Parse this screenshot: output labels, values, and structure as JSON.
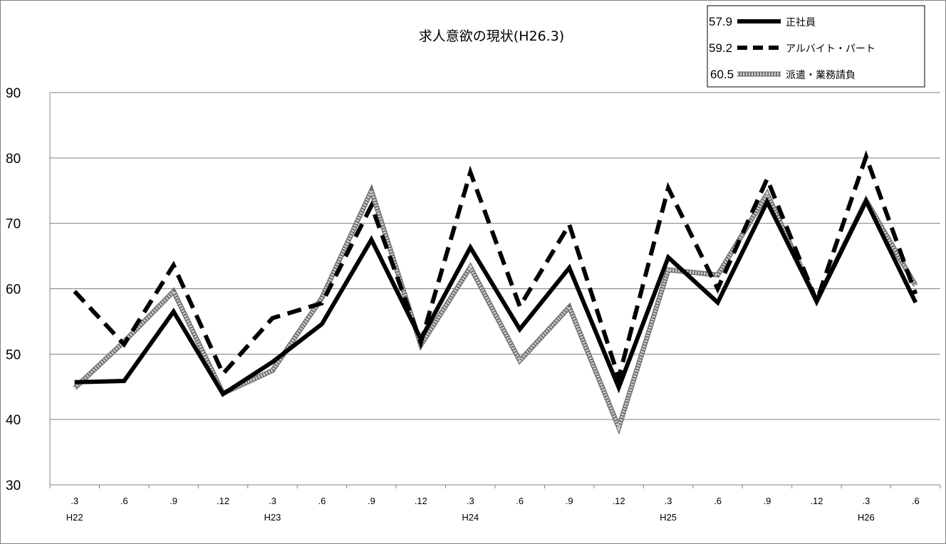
{
  "chart_data": {
    "type": "line",
    "title": "求人意欲の現状(H26.3)",
    "xlabel": "",
    "ylabel": "",
    "ylim": [
      30,
      90
    ],
    "yticks": [
      30,
      40,
      50,
      60,
      70,
      80,
      90
    ],
    "grid": true,
    "legend_position": "top-right",
    "x": [
      ".3",
      ".6",
      ".9",
      ".12",
      ".3",
      ".6",
      ".9",
      ".12",
      ".3",
      ".6",
      ".9",
      ".12",
      ".3",
      ".6",
      ".9",
      ".12",
      ".3",
      ".6"
    ],
    "x_groups": [
      {
        "label": "H22",
        "index": 0
      },
      {
        "label": "H23",
        "index": 4
      },
      {
        "label": "H24",
        "index": 8
      },
      {
        "label": "H25",
        "index": 12
      },
      {
        "label": "H26",
        "index": 16
      }
    ],
    "series": [
      {
        "name": "正社員",
        "legend_value": "57.9",
        "style": "solid",
        "color": "#000000",
        "values": [
          45.7,
          45.9,
          56.5,
          43.9,
          48.8,
          54.6,
          67.5,
          52.3,
          66.3,
          53.8,
          63.2,
          44.9,
          64.8,
          57.9,
          73.3,
          58.1,
          73.4,
          57.9
        ]
      },
      {
        "name": "アルバイト・パート",
        "legend_value": "59.2",
        "style": "dashed",
        "color": "#000000",
        "values": [
          59.6,
          51.5,
          63.6,
          47.0,
          55.5,
          57.8,
          72.7,
          51.8,
          77.8,
          57.3,
          69.8,
          46.4,
          75.4,
          60.0,
          76.8,
          58.1,
          80.2,
          59.2
        ]
      },
      {
        "name": "派遣・業務請負",
        "legend_value": "60.5",
        "style": "patterned",
        "color": "#9a9a9a",
        "values": [
          44.8,
          51.9,
          59.6,
          44.0,
          47.5,
          58.6,
          75.0,
          51.4,
          63.3,
          49.0,
          57.2,
          38.8,
          62.9,
          62.1,
          74.5,
          58.1,
          73.5,
          60.5
        ]
      }
    ]
  }
}
